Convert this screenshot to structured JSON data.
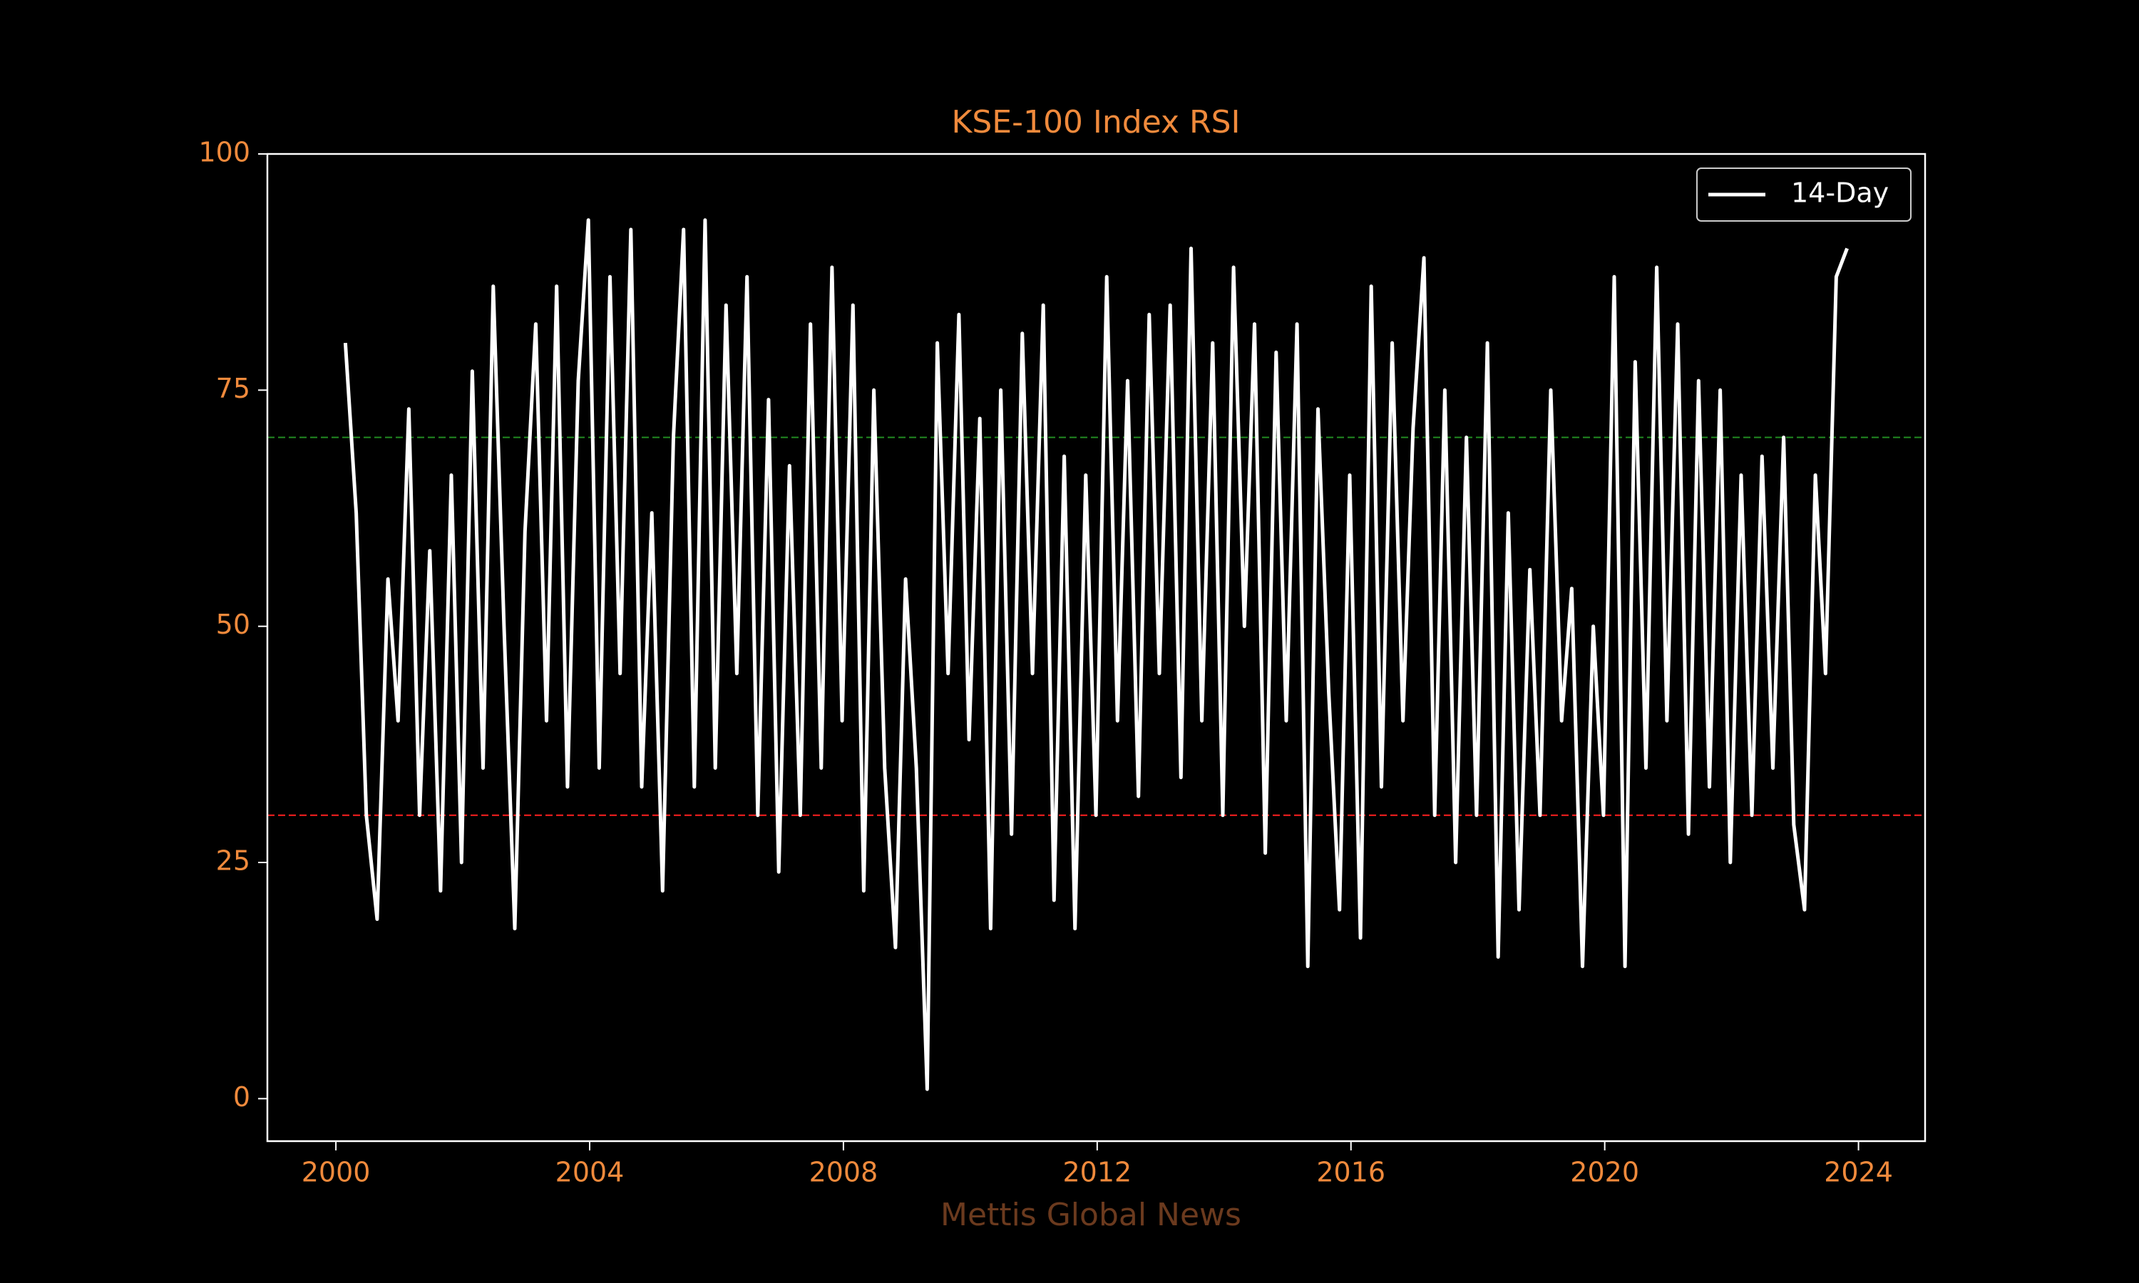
{
  "chart_data": {
    "type": "line",
    "title": "KSE-100 Index RSI",
    "footer": "Mettis Global News",
    "xlim": [
      1998.92,
      2025.05
    ],
    "xticks": [
      2000,
      2004,
      2008,
      2012,
      2016,
      2020,
      2024
    ],
    "ylim": [
      -4.5,
      100
    ],
    "yticks": [
      0,
      25,
      50,
      75,
      100
    ],
    "legend": "upper right",
    "hlines": [
      {
        "value": 70,
        "color": "#228b22"
      },
      {
        "value": 30,
        "color": "#ff2020"
      }
    ],
    "x": [
      2000.15,
      2000.32,
      2000.48,
      2000.65,
      2000.82,
      2000.98,
      2001.15,
      2001.32,
      2001.48,
      2001.65,
      2001.82,
      2001.98,
      2002.15,
      2002.32,
      2002.48,
      2002.65,
      2002.82,
      2002.98,
      2003.15,
      2003.32,
      2003.48,
      2003.65,
      2003.82,
      2003.98,
      2004.15,
      2004.32,
      2004.48,
      2004.65,
      2004.82,
      2004.98,
      2005.15,
      2005.32,
      2005.48,
      2005.65,
      2005.82,
      2005.98,
      2006.15,
      2006.32,
      2006.48,
      2006.65,
      2006.82,
      2006.98,
      2007.15,
      2007.32,
      2007.48,
      2007.65,
      2007.82,
      2007.98,
      2008.15,
      2008.32,
      2008.48,
      2008.65,
      2008.82,
      2008.98,
      2009.15,
      2009.32,
      2009.48,
      2009.65,
      2009.82,
      2009.98,
      2010.15,
      2010.32,
      2010.48,
      2010.65,
      2010.82,
      2010.98,
      2011.15,
      2011.32,
      2011.48,
      2011.65,
      2011.82,
      2011.98,
      2012.15,
      2012.32,
      2012.48,
      2012.65,
      2012.82,
      2012.98,
      2013.15,
      2013.32,
      2013.48,
      2013.65,
      2013.82,
      2013.98,
      2014.15,
      2014.32,
      2014.48,
      2014.65,
      2014.82,
      2014.98,
      2015.15,
      2015.32,
      2015.48,
      2015.65,
      2015.82,
      2015.98,
      2016.15,
      2016.32,
      2016.48,
      2016.65,
      2016.82,
      2016.98,
      2017.15,
      2017.32,
      2017.48,
      2017.65,
      2017.82,
      2017.98,
      2018.15,
      2018.32,
      2018.48,
      2018.65,
      2018.82,
      2018.98,
      2019.15,
      2019.32,
      2019.48,
      2019.65,
      2019.82,
      2019.98,
      2020.15,
      2020.32,
      2020.48,
      2020.65,
      2020.82,
      2020.98,
      2021.15,
      2021.32,
      2021.48,
      2021.65,
      2021.82,
      2021.98,
      2022.15,
      2022.32,
      2022.48,
      2022.65,
      2022.82,
      2022.98,
      2023.15,
      2023.32,
      2023.48,
      2023.65,
      2023.82
    ],
    "series": [
      {
        "name": "14-Day",
        "color": "#ffffff",
        "values": [
          80,
          62,
          30,
          19,
          55,
          40,
          73,
          30,
          58,
          22,
          66,
          25,
          77,
          35,
          86,
          50,
          18,
          60,
          82,
          40,
          86,
          33,
          76,
          93,
          35,
          87,
          45,
          92,
          33,
          62,
          22,
          70,
          92,
          33,
          93,
          35,
          84,
          45,
          87,
          30,
          74,
          24,
          67,
          30,
          82,
          35,
          88,
          40,
          84,
          22,
          75,
          35,
          16,
          55,
          35,
          1,
          80,
          45,
          83,
          38,
          72,
          18,
          75,
          28,
          81,
          45,
          84,
          21,
          68,
          18,
          66,
          30,
          87,
          40,
          76,
          32,
          83,
          45,
          84,
          34,
          90,
          40,
          80,
          30,
          88,
          50,
          82,
          26,
          79,
          40,
          82,
          14,
          73,
          43,
          20,
          66,
          17,
          86,
          33,
          80,
          40,
          71,
          89,
          30,
          75,
          25,
          70,
          30,
          80,
          15,
          62,
          20,
          56,
          30,
          75,
          40,
          54,
          14,
          50,
          30,
          87,
          14,
          78,
          35,
          88,
          40,
          82,
          28,
          76,
          33,
          75,
          25,
          66,
          30,
          68,
          35,
          70,
          29,
          20,
          66,
          45,
          87,
          90
        ]
      }
    ]
  }
}
